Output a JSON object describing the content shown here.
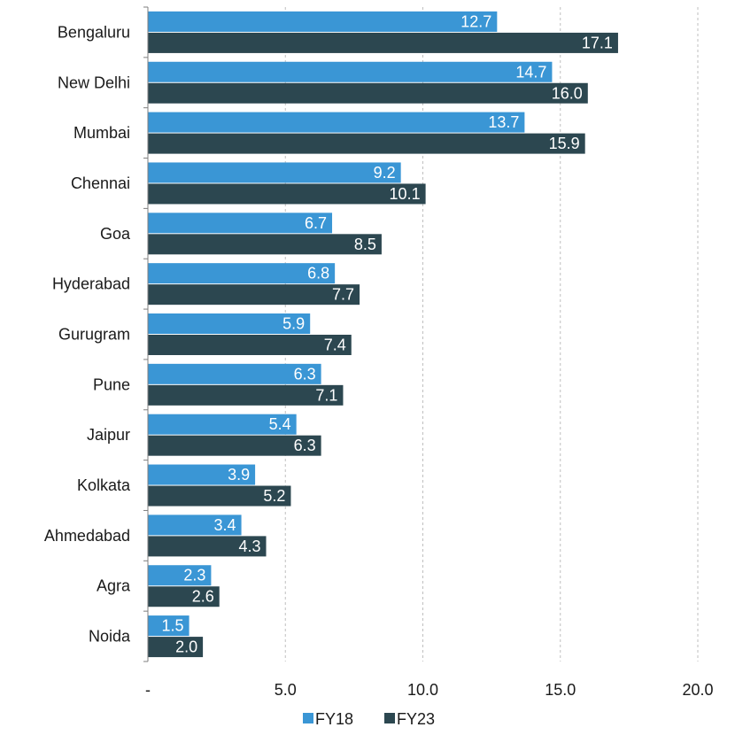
{
  "chart_data": {
    "type": "bar",
    "orientation": "horizontal",
    "title": "",
    "xlabel": "",
    "ylabel": "",
    "categories": [
      "Bengaluru",
      "New Delhi",
      "Mumbai",
      "Chennai",
      "Goa",
      "Hyderabad",
      "Gurugram",
      "Pune",
      "Jaipur",
      "Kolkata",
      "Ahmedabad",
      "Agra",
      "Noida"
    ],
    "series": [
      {
        "name": "FY18",
        "color": "#3a96d5",
        "values": [
          12.7,
          14.7,
          13.7,
          9.2,
          6.7,
          6.8,
          5.9,
          6.3,
          5.4,
          3.9,
          3.4,
          2.3,
          1.5
        ]
      },
      {
        "name": "FY23",
        "color": "#2c4750",
        "values": [
          17.1,
          16.0,
          15.9,
          10.1,
          8.5,
          7.7,
          7.4,
          7.1,
          6.3,
          5.2,
          4.3,
          2.6,
          2.0
        ]
      }
    ],
    "xlim": [
      0,
      20
    ],
    "x_ticks": [
      0,
      5,
      10,
      15,
      20
    ],
    "x_tick_labels": [
      "-",
      "5.0",
      "10.0",
      "15.0",
      "20.0"
    ],
    "grid": "vertical dashed",
    "legend_position": "bottom"
  }
}
